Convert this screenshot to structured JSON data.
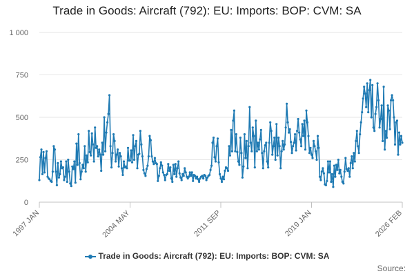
{
  "chart_data": {
    "type": "line",
    "title": "Trade in Goods: Aircraft (792): EU: Imports: BOP: CVM: SA",
    "xlabel": "",
    "ylabel": "",
    "x_start": "1997 JAN",
    "x_end": "2026 FEB",
    "x_ticks": [
      "1997 JAN",
      "2004 MAY",
      "2011 SEP",
      "2019 JAN",
      "2026 FEB"
    ],
    "y_ticks": [
      0,
      250,
      500,
      750,
      1000
    ],
    "y_tick_labels": [
      "0",
      "250",
      "500",
      "750",
      "1 000"
    ],
    "ylim": [
      0,
      1000
    ],
    "grid": true,
    "legend_position": "bottom",
    "series": [
      {
        "name": "Trade in Goods: Aircraft (792): EU: Imports: BOP: CVM: SA",
        "color": "#1f7ab3",
        "values": [
          130,
          265,
          310,
          165,
          295,
          175,
          260,
          300,
          150,
          140,
          135,
          125,
          120,
          180,
          330,
          310,
          180,
          100,
          230,
          145,
          165,
          240,
          200,
          205,
          130,
          150,
          240,
          120,
          250,
          180,
          110,
          95,
          210,
          195,
          240,
          115,
          345,
          220,
          400,
          230,
          135,
          180,
          220,
          200,
          330,
          180,
          275,
          235,
          420,
          295,
          275,
          405,
          340,
          240,
          440,
          320,
          330,
          270,
          310,
          280,
          185,
          350,
          280,
          500,
          300,
          410,
          470,
          520,
          630,
          330,
          205,
          290,
          400,
          360,
          240,
          280,
          310,
          210,
          290,
          270,
          200,
          160,
          240,
          205,
          210,
          200,
          320,
          245,
          245,
          305,
          235,
          395,
          250,
          330,
          360,
          200,
          280,
          285,
          420,
          340,
          270,
          190,
          170,
          155,
          195,
          215,
          270,
          390,
          365,
          270,
          240,
          225,
          260,
          230,
          225,
          125,
          155,
          200,
          235,
          215,
          175,
          160,
          130,
          160,
          165,
          225,
          185,
          205,
          140,
          120,
          220,
          165,
          225,
          150,
          200,
          240,
          170,
          145,
          130,
          165,
          155,
          200,
          175,
          150,
          140,
          150,
          175,
          155,
          175,
          125,
          160,
          155,
          140,
          150,
          135,
          120,
          140,
          150,
          155,
          140,
          160,
          155,
          130,
          145,
          155,
          160,
          190,
          215,
          350,
          380,
          265,
          240,
          330,
          375,
          235,
          165,
          140,
          120,
          150,
          135,
          185,
          205,
          200,
          185,
          330,
          275,
          425,
          300,
          480,
          540,
          300,
          400,
          295,
          240,
          220,
          380,
          290,
          145,
          210,
          400,
          260,
          360,
          200,
          330,
          560,
          350,
          300,
          440,
          390,
          205,
          480,
          300,
          350,
          310,
          370,
          425,
          290,
          200,
          300,
          335,
          350,
          240,
          205,
          350,
          470,
          420,
          280,
          330,
          380,
          250,
          460,
          275,
          380,
          330,
          200,
          300,
          360,
          310,
          340,
          440,
          580,
          470,
          410,
          430,
          355,
          290,
          330,
          350,
          400,
          305,
          420,
          490,
          410,
          370,
          330,
          460,
          390,
          480,
          310,
          540,
          470,
          390,
          290,
          320,
          280,
          260,
          360,
          330,
          300,
          250,
          390,
          320,
          150,
          130,
          180,
          200,
          170,
          105,
          100,
          125,
          240,
          175,
          240,
          120,
          165,
          90,
          215,
          150,
          220,
          190,
          250,
          170,
          190,
          150,
          120,
          110,
          180,
          260,
          195,
          185,
          200,
          150,
          230,
          270,
          200,
          290,
          240,
          360,
          420,
          330,
          290,
          400,
          470,
          530,
          610,
          680,
          640,
          560,
          700,
          530,
          660,
          720,
          500,
          690,
          440,
          420,
          520,
          560,
          700,
          600,
          440,
          490,
          570,
          360,
          680,
          310,
          420,
          380,
          570,
          540,
          430,
          600,
          630,
          600,
          500,
          340,
          470,
          480,
          280,
          410,
          340,
          390,
          350
        ]
      }
    ]
  },
  "legend": {
    "label": "Trade in Goods: Aircraft (792): EU: Imports: BOP: CVM: SA"
  },
  "source_label": "Source:"
}
